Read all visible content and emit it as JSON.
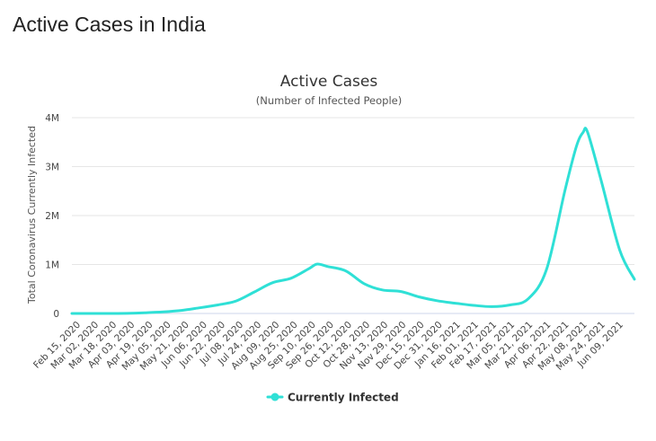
{
  "page": {
    "heading": "Active Cases in India"
  },
  "chart_data": {
    "type": "line",
    "title": "Active Cases",
    "subtitle": "(Number of Infected People)",
    "ylabel": "Total Coronavirus Currently Infected",
    "xlabel": "",
    "ylim": [
      0,
      4000000
    ],
    "y_ticks": [
      0,
      1000000,
      2000000,
      3000000,
      4000000
    ],
    "y_tick_labels": [
      "0",
      "1M",
      "2M",
      "3M",
      "4M"
    ],
    "x_tick_labels": [
      "Feb 15, 2020",
      "Mar 02, 2020",
      "Mar 18, 2020",
      "Apr 03, 2020",
      "Apr 19, 2020",
      "May 05, 2020",
      "May 21, 2020",
      "Jun 06, 2020",
      "Jun 22, 2020",
      "Jul 08, 2020",
      "Jul 24, 2020",
      "Aug 09, 2020",
      "Aug 25, 2020",
      "Sep 10, 2020",
      "Sep 26, 2020",
      "Oct 12, 2020",
      "Oct 28, 2020",
      "Nov 13, 2020",
      "Nov 29, 2020",
      "Dec 15, 2020",
      "Dec 31, 2020",
      "Jan 16, 2021",
      "Feb 01, 2021",
      "Feb 17, 2021",
      "Mar 05, 2021",
      "Mar 21, 2021",
      "Apr 06, 2021",
      "Apr 22, 2021",
      "May 08, 2021",
      "May 24, 2021",
      "Jun 09, 2021"
    ],
    "x_range": [
      "2020-02-15",
      "2021-06-22"
    ],
    "grid": true,
    "legend_position": "bottom-center",
    "color": "#2fe0d6",
    "series": [
      {
        "name": "Currently Infected",
        "points": [
          [
            "2020-02-15",
            0
          ],
          [
            "2020-03-02",
            3
          ],
          [
            "2020-03-18",
            130
          ],
          [
            "2020-04-03",
            2300
          ],
          [
            "2020-04-19",
            13000
          ],
          [
            "2020-05-05",
            32000
          ],
          [
            "2020-05-21",
            63000
          ],
          [
            "2020-06-06",
            115000
          ],
          [
            "2020-06-22",
            175000
          ],
          [
            "2020-07-08",
            255000
          ],
          [
            "2020-07-24",
            440000
          ],
          [
            "2020-08-09",
            630000
          ],
          [
            "2020-08-25",
            720000
          ],
          [
            "2020-09-10",
            920000
          ],
          [
            "2020-09-17",
            1010000
          ],
          [
            "2020-09-26",
            960000
          ],
          [
            "2020-10-12",
            870000
          ],
          [
            "2020-10-28",
            610000
          ],
          [
            "2020-11-13",
            480000
          ],
          [
            "2020-11-29",
            450000
          ],
          [
            "2020-12-15",
            340000
          ],
          [
            "2020-12-31",
            260000
          ],
          [
            "2021-01-16",
            210000
          ],
          [
            "2021-02-01",
            165000
          ],
          [
            "2021-02-17",
            140000
          ],
          [
            "2021-03-05",
            175000
          ],
          [
            "2021-03-21",
            300000
          ],
          [
            "2021-04-06",
            900000
          ],
          [
            "2021-04-22",
            2500000
          ],
          [
            "2021-05-02",
            3400000
          ],
          [
            "2021-05-08",
            3700000
          ],
          [
            "2021-05-12",
            3700000
          ],
          [
            "2021-05-24",
            2700000
          ],
          [
            "2021-06-09",
            1300000
          ],
          [
            "2021-06-22",
            700000
          ]
        ]
      }
    ]
  }
}
